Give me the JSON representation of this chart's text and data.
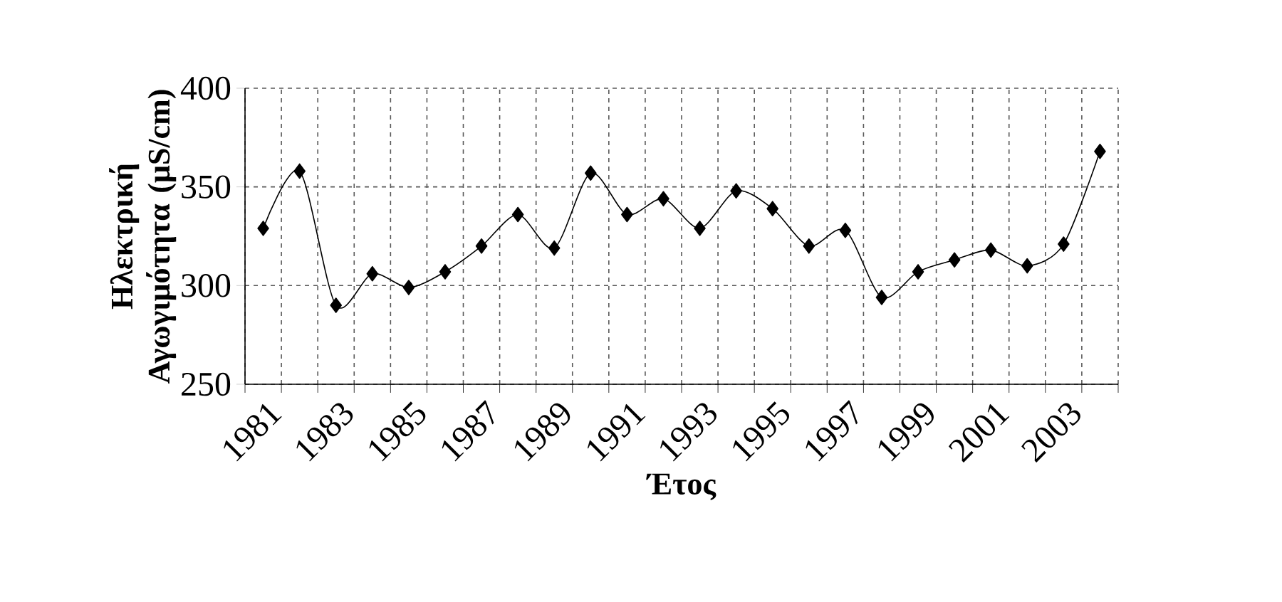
{
  "chart_data": {
    "type": "line",
    "xlabel": "Έτος",
    "ylabel": "Ηλεκτρική Αγωγιμότητα (μS/cm)",
    "categories": [
      "1981",
      null,
      "1983",
      null,
      "1985",
      null,
      "1987",
      null,
      "1989",
      null,
      "1991",
      null,
      "1993",
      null,
      "1995",
      null,
      "1997",
      null,
      "1999",
      null,
      "2001",
      null,
      "2003",
      null
    ],
    "series": [
      {
        "color": "#000000",
        "values": [
          329,
          358,
          290,
          306,
          299,
          307,
          320,
          336,
          319,
          357,
          336,
          344,
          329,
          348,
          339,
          320,
          328,
          294,
          307,
          313,
          318,
          310,
          321,
          368
        ]
      }
    ],
    "ylim": [
      250,
      400
    ],
    "yticks": [
      250,
      300,
      350,
      400
    ],
    "grid": true,
    "marker": "diamond",
    "line_style": "solid"
  }
}
